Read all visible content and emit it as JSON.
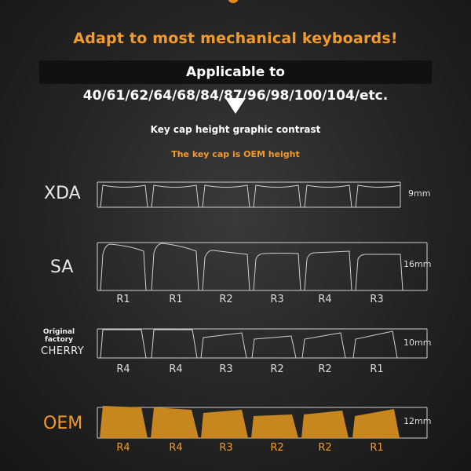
{
  "headline": "Adapt to most mechanical keyboards!",
  "subline": "Applicable to 40/61/62/64/68/84/87/96/98/100/104/etc.",
  "caption": "Key cap height graphic contrast",
  "oem_note": "The key cap is OEM height",
  "profiles": {
    "xda": {
      "name": "XDA",
      "height": "9mm"
    },
    "sa": {
      "name": "SA",
      "height": "16mm",
      "rows": [
        "R1",
        "R1",
        "R2",
        "R3",
        "R4",
        "R3"
      ]
    },
    "cherry": {
      "original": "Original",
      "factory": "factory",
      "name": "CHERRY",
      "height": "10mm",
      "rows": [
        "R4",
        "R4",
        "R3",
        "R2",
        "R2",
        "R1"
      ]
    },
    "oem": {
      "name": "OEM",
      "height": "12mm",
      "rows": [
        "R4",
        "R4",
        "R3",
        "R2",
        "R2",
        "R1"
      ]
    }
  },
  "colors": {
    "accent": "#f39a2a",
    "oem_fill": "#c8861e",
    "outline": "#cfcfcf"
  }
}
